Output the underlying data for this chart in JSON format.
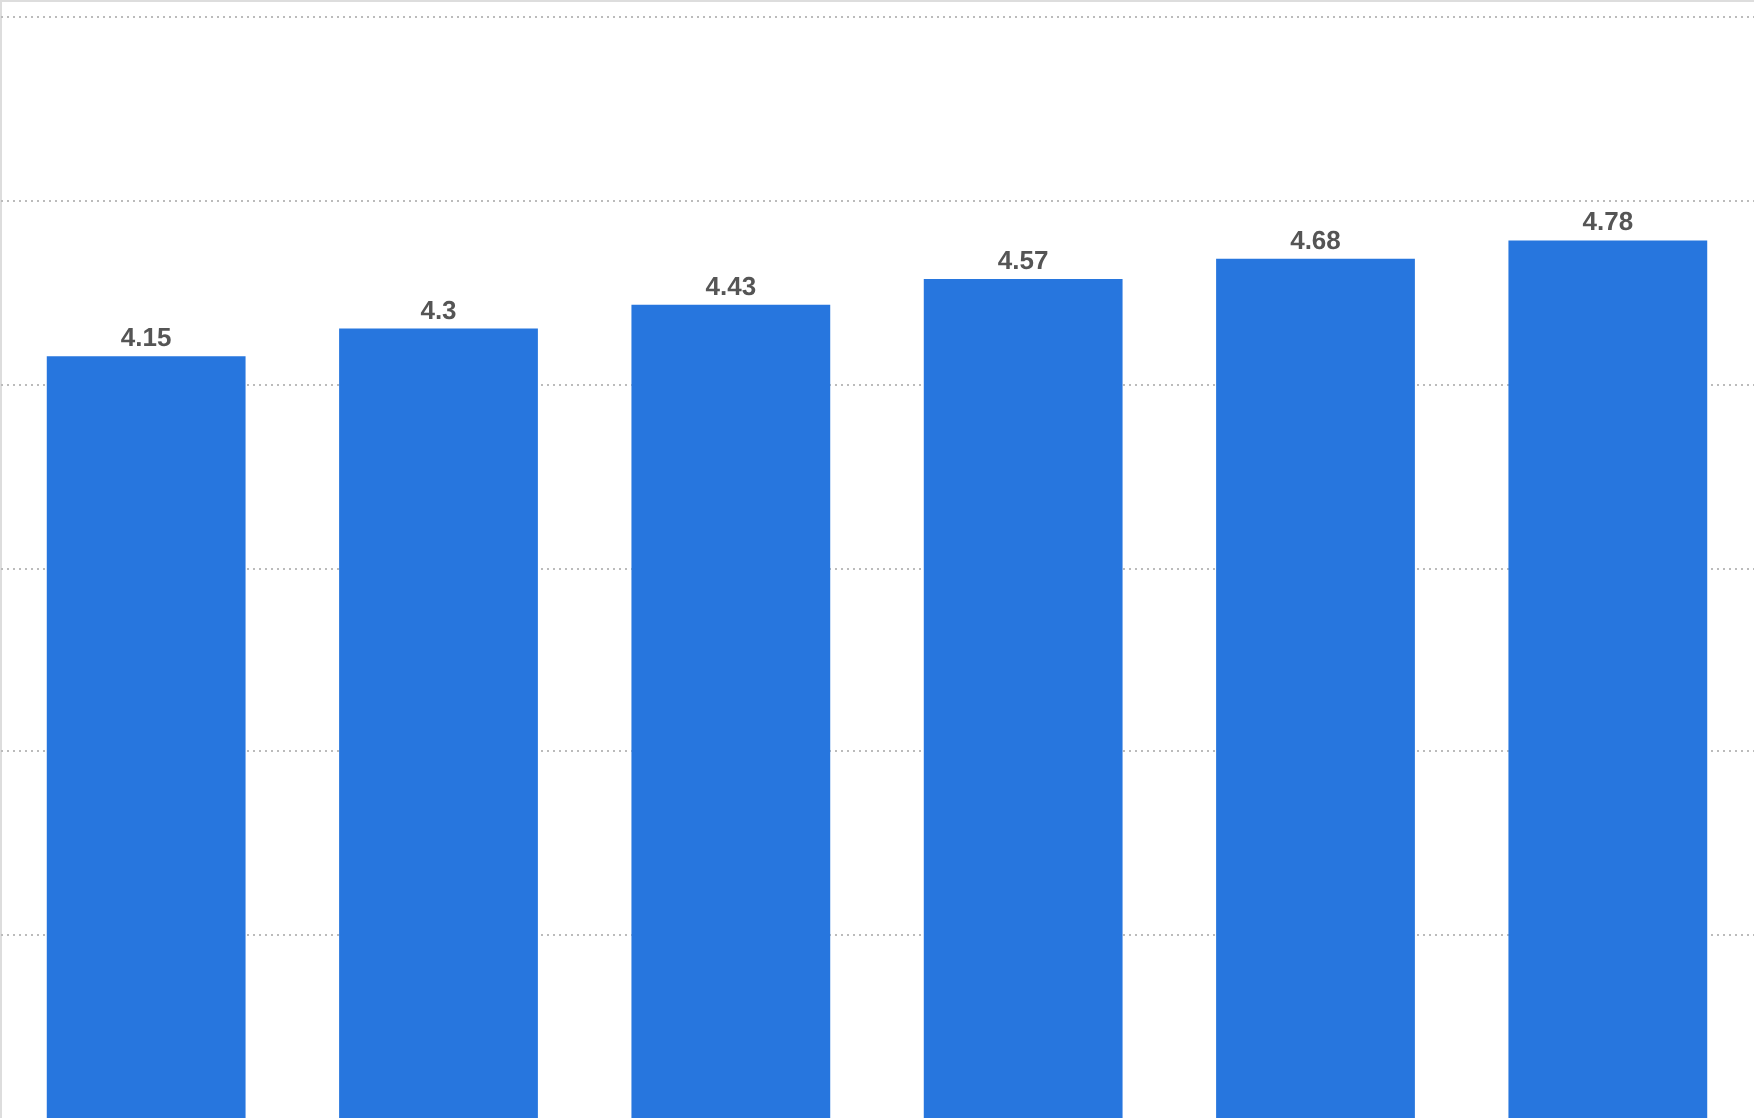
{
  "chart_data": {
    "type": "bar",
    "categories": [
      null,
      null,
      null,
      null,
      null,
      null
    ],
    "values": [
      4.15,
      4.3,
      4.43,
      4.57,
      4.68,
      4.78
    ],
    "color": "#2776de",
    "ylim": [
      0,
      6.09
    ],
    "yticks": [
      {
        "value": 0,
        "label": null
      },
      {
        "value": 1,
        "label": null
      },
      {
        "value": 2,
        "label": null
      },
      {
        "value": 3,
        "label": null
      },
      {
        "value": 4,
        "label": null
      },
      {
        "value": 5,
        "label": null
      },
      {
        "value": 6,
        "label": null
      }
    ],
    "grid": "y",
    "data_labels": true,
    "tick_labels": false
  }
}
